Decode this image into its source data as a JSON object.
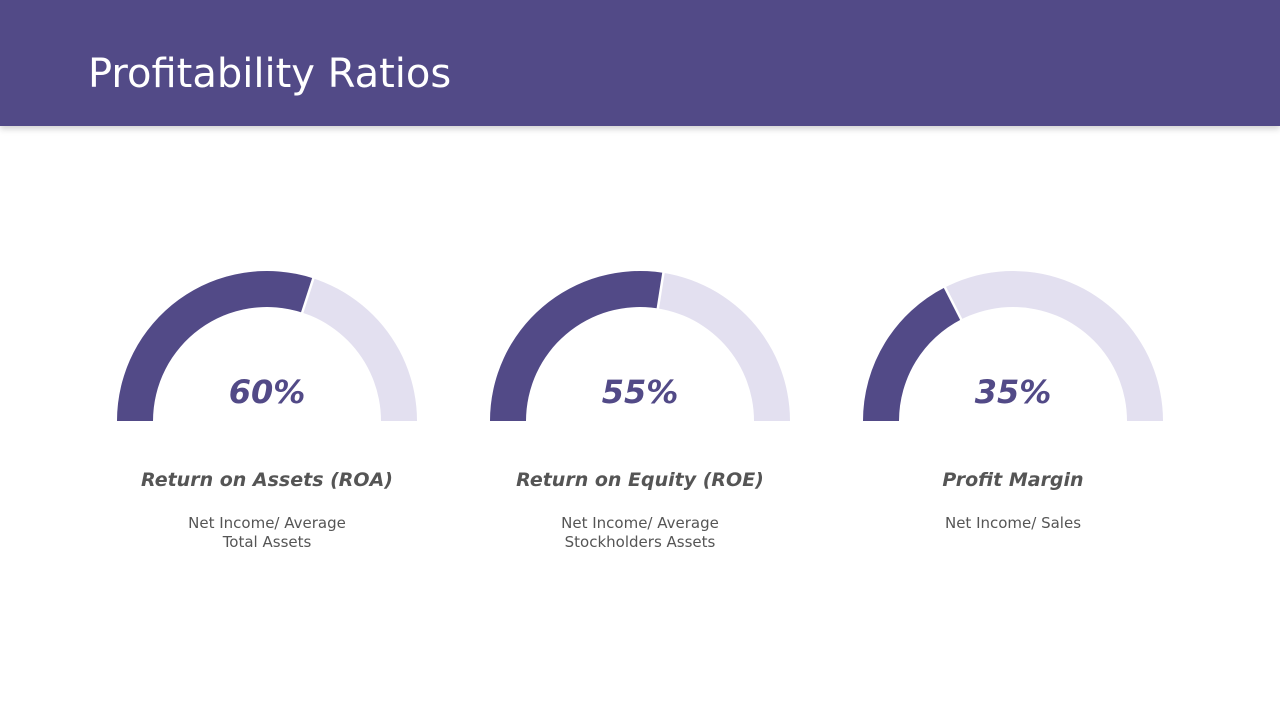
{
  "title": "Profitability Ratios",
  "chart_data": [
    {
      "type": "gauge",
      "title": "Return on Assets (ROA)",
      "subtitle": "Net Income/ Average Total Assets",
      "values": [
        60
      ],
      "value_labels": [
        "60%"
      ],
      "ylim": [
        0,
        100
      ],
      "color": "#524a87",
      "track_color": "#e3e0f0"
    },
    {
      "type": "gauge",
      "title": "Return on Equity (ROE)",
      "subtitle": "Net Income/ Average Stockholders Assets",
      "values": [
        55
      ],
      "value_labels": [
        "55%"
      ],
      "ylim": [
        0,
        100
      ],
      "color": "#524a87",
      "track_color": "#e3e0f0"
    },
    {
      "type": "gauge",
      "title": "Profit Margin",
      "subtitle": "Net Income/ Sales",
      "values": [
        35
      ],
      "value_labels": [
        "35%"
      ],
      "ylim": [
        0,
        100
      ],
      "color": "#524a87",
      "track_color": "#e3e0f0"
    }
  ]
}
